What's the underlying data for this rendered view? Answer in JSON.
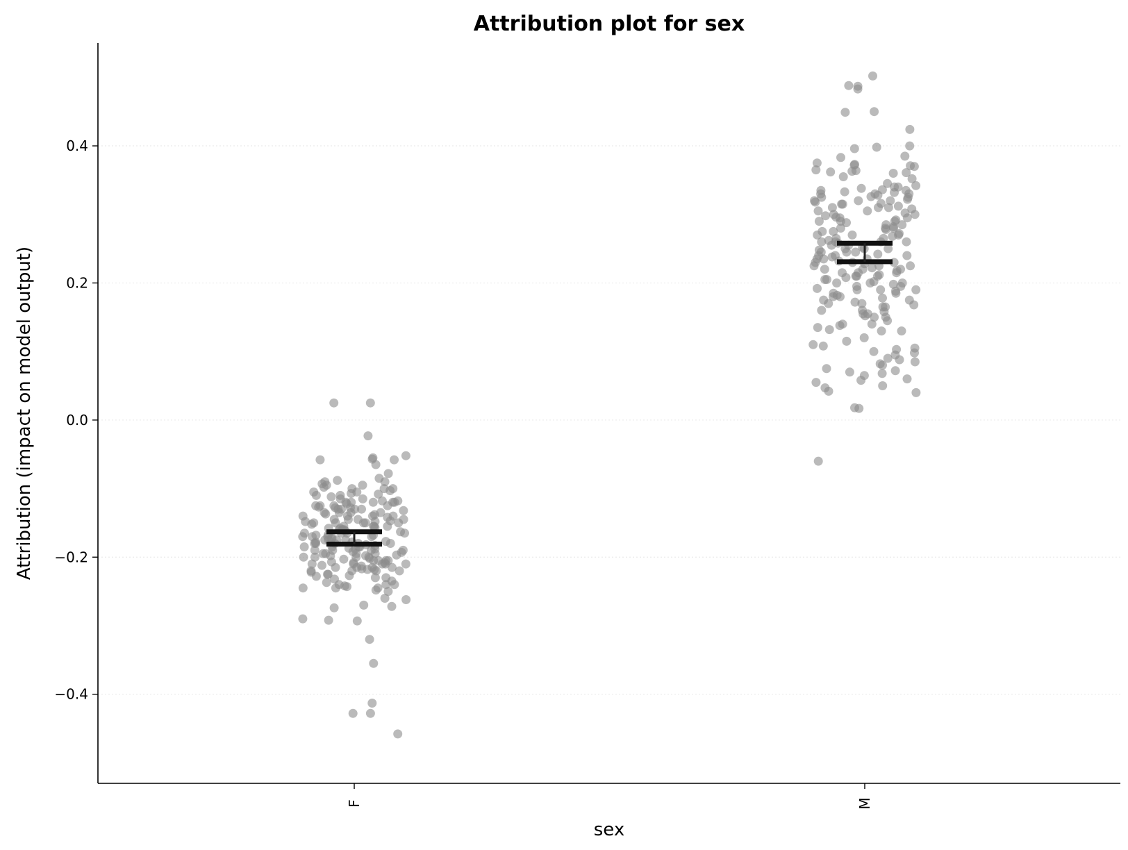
{
  "chart_data": {
    "type": "scatter",
    "title": "Attribution plot for sex",
    "xlabel": "sex",
    "ylabel": "Attribution (impact on model output)",
    "categories": [
      "F",
      "M"
    ],
    "ylim": [
      -0.53,
      0.55
    ],
    "yticks": [
      -0.4,
      -0.2,
      0.0,
      0.2,
      0.4
    ],
    "ytick_labels": [
      "−0.4",
      "−0.2",
      "0.0",
      "0.2",
      "0.4"
    ],
    "grid": "horizontal",
    "point_color": "#8c8c8c",
    "series": [
      {
        "category": "F",
        "values": [
          0.025,
          0.025,
          -0.023,
          -0.052,
          -0.055,
          -0.057,
          -0.058,
          -0.058,
          -0.065,
          -0.078,
          -0.085,
          -0.088,
          -0.09,
          -0.093,
          -0.095,
          -0.095,
          -0.098,
          -0.1,
          -0.1,
          -0.103,
          -0.105,
          -0.107,
          -0.108,
          -0.11,
          -0.112,
          -0.115,
          -0.118,
          -0.12,
          -0.12,
          -0.122,
          -0.125,
          -0.125,
          -0.127,
          -0.128,
          -0.13,
          -0.13,
          -0.132,
          -0.135,
          -0.135,
          -0.137,
          -0.14,
          -0.14,
          -0.142,
          -0.145,
          -0.145,
          -0.147,
          -0.148,
          -0.15,
          -0.15,
          -0.152,
          -0.155,
          -0.155,
          -0.157,
          -0.158,
          -0.16,
          -0.16,
          -0.162,
          -0.163,
          -0.165,
          -0.165,
          -0.167,
          -0.168,
          -0.17,
          -0.17,
          -0.172,
          -0.173,
          -0.175,
          -0.175,
          -0.177,
          -0.178,
          -0.18,
          -0.18,
          -0.182,
          -0.183,
          -0.185,
          -0.185,
          -0.187,
          -0.188,
          -0.19,
          -0.19,
          -0.192,
          -0.193,
          -0.195,
          -0.195,
          -0.197,
          -0.198,
          -0.2,
          -0.2,
          -0.202,
          -0.203,
          -0.205,
          -0.205,
          -0.207,
          -0.208,
          -0.21,
          -0.21,
          -0.212,
          -0.213,
          -0.215,
          -0.215,
          -0.217,
          -0.218,
          -0.22,
          -0.22,
          -0.222,
          -0.225,
          -0.227,
          -0.23,
          -0.232,
          -0.235,
          -0.237,
          -0.24,
          -0.242,
          -0.243,
          -0.245,
          -0.245,
          -0.248,
          -0.25,
          -0.26,
          -0.262,
          -0.27,
          -0.272,
          -0.274,
          -0.29,
          -0.292,
          -0.293,
          -0.32,
          -0.355,
          -0.413,
          -0.428,
          -0.428,
          -0.458,
          -0.12,
          -0.125,
          -0.13,
          -0.135,
          -0.14,
          -0.145,
          -0.15,
          -0.155,
          -0.16,
          -0.165,
          -0.17,
          -0.175,
          -0.18,
          -0.185,
          -0.19,
          -0.195,
          -0.2,
          -0.205,
          -0.21,
          -0.215,
          -0.22,
          -0.1,
          -0.11,
          -0.12,
          -0.13,
          -0.14,
          -0.15,
          -0.16,
          -0.17,
          -0.18,
          -0.19,
          -0.2,
          -0.21,
          -0.22,
          -0.23,
          -0.24,
          -0.09,
          -0.12,
          -0.15,
          -0.18,
          -0.21,
          -0.24,
          -0.135,
          -0.165,
          -0.195,
          -0.225,
          -0.115,
          -0.145,
          -0.175,
          -0.205,
          -0.125,
          -0.155,
          -0.185,
          -0.215,
          -0.245,
          -0.105,
          -0.138,
          -0.168,
          -0.198,
          -0.228,
          -0.118,
          -0.148,
          -0.178,
          -0.208,
          -0.128,
          -0.158,
          -0.188,
          -0.218
        ],
        "ci_low": -0.181,
        "ci_high": -0.163
      },
      {
        "category": "M",
        "values": [
          0.502,
          0.488,
          0.487,
          0.483,
          0.45,
          0.449,
          0.424,
          0.4,
          0.398,
          0.396,
          0.385,
          0.383,
          0.375,
          0.373,
          0.372,
          0.371,
          0.37,
          0.365,
          0.364,
          0.363,
          0.362,
          0.361,
          0.355,
          0.352,
          0.345,
          0.342,
          0.34,
          0.338,
          0.336,
          0.335,
          0.333,
          0.332,
          0.33,
          0.328,
          0.326,
          0.325,
          0.322,
          0.32,
          0.318,
          0.316,
          0.315,
          0.312,
          0.31,
          0.308,
          0.305,
          0.302,
          0.3,
          0.298,
          0.296,
          0.295,
          0.292,
          0.29,
          0.288,
          0.285,
          0.282,
          0.28,
          0.278,
          0.275,
          0.272,
          0.27,
          0.268,
          0.265,
          0.262,
          0.26,
          0.258,
          0.255,
          0.252,
          0.25,
          0.248,
          0.245,
          0.242,
          0.24,
          0.238,
          0.235,
          0.232,
          0.23,
          0.228,
          0.225,
          0.222,
          0.22,
          0.218,
          0.215,
          0.212,
          0.21,
          0.208,
          0.205,
          0.202,
          0.2,
          0.198,
          0.195,
          0.192,
          0.19,
          0.188,
          0.185,
          0.182,
          0.18,
          0.178,
          0.175,
          0.172,
          0.17,
          0.168,
          0.165,
          0.16,
          0.158,
          0.155,
          0.152,
          0.15,
          0.145,
          0.14,
          0.138,
          0.135,
          0.132,
          0.13,
          0.12,
          0.115,
          0.11,
          0.108,
          0.105,
          0.103,
          0.1,
          0.098,
          0.095,
          0.09,
          0.088,
          0.085,
          0.082,
          0.08,
          0.075,
          0.072,
          0.07,
          0.068,
          0.065,
          0.06,
          0.058,
          0.055,
          0.05,
          0.047,
          0.042,
          0.04,
          0.018,
          0.017,
          -0.06,
          0.33,
          0.32,
          0.31,
          0.3,
          0.29,
          0.28,
          0.27,
          0.26,
          0.25,
          0.24,
          0.23,
          0.22,
          0.21,
          0.2,
          0.19,
          0.18,
          0.17,
          0.16,
          0.15,
          0.14,
          0.13,
          0.335,
          0.315,
          0.295,
          0.275,
          0.255,
          0.235,
          0.215,
          0.195,
          0.175,
          0.155,
          0.325,
          0.305,
          0.285,
          0.265,
          0.245,
          0.225,
          0.205,
          0.185,
          0.165,
          0.34,
          0.26,
          0.24,
          0.22,
          0.2,
          0.36,
          0.32,
          0.28,
          0.25,
          0.23,
          0.21,
          0.19,
          0.33,
          0.27,
          0.26,
          0.245,
          0.235,
          0.225,
          0.215,
          0.31,
          0.29
        ],
        "ci_low": 0.231,
        "ci_high": 0.258
      }
    ]
  }
}
